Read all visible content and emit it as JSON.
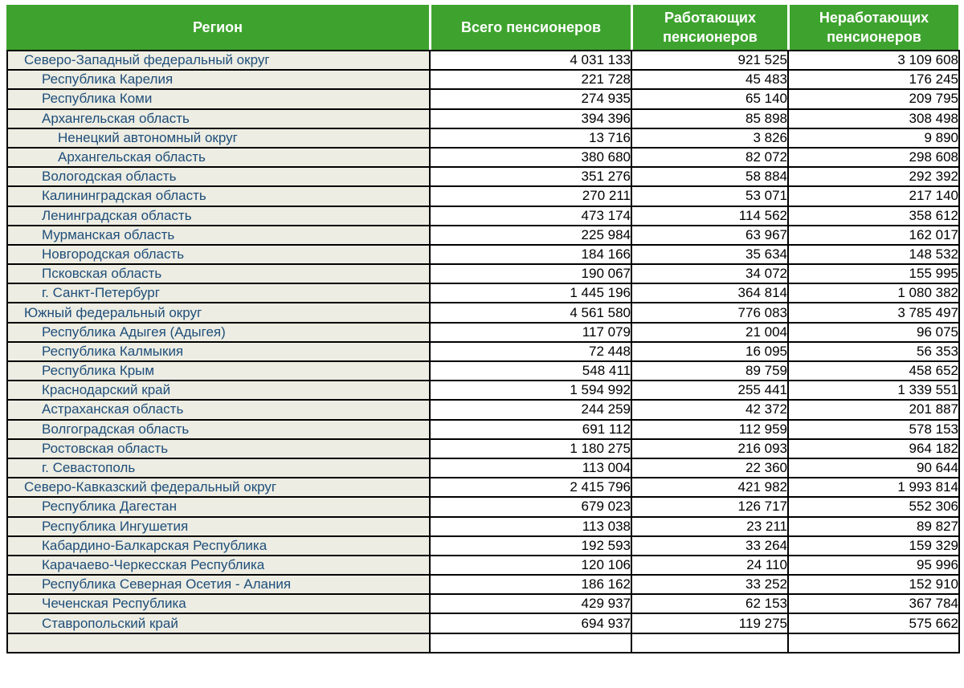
{
  "colors": {
    "header_green": "#3EA32E",
    "region_text_blue": "#1F4E79",
    "region_row_gray": "#EDEDE3",
    "grid_border": "#000000"
  },
  "header": {
    "columns": [
      {
        "label": "Регион"
      },
      {
        "label": "Всего пенсионеров"
      },
      {
        "label": "Работающих пенсионеров"
      },
      {
        "label": "Неработающих пенсионеров"
      }
    ]
  },
  "chart_data": {
    "type": "table",
    "columns": [
      "Регион",
      "Всего пенсионеров",
      "Работающих пенсионеров",
      "Неработающих пенсионеров"
    ],
    "rows": [
      {
        "region": "Северо-Западный федеральный округ",
        "level": 0,
        "total": "4 031 133",
        "working": "921 525",
        "non_working": "3 109 608"
      },
      {
        "region": "Республика Карелия",
        "level": 1,
        "total": "221 728",
        "working": "45 483",
        "non_working": "176 245"
      },
      {
        "region": "Республика Коми",
        "level": 1,
        "total": "274 935",
        "working": "65 140",
        "non_working": "209 795"
      },
      {
        "region": "Архангельская область",
        "level": 1,
        "total": "394 396",
        "working": "85 898",
        "non_working": "308 498"
      },
      {
        "region": "Ненецкий автономный округ",
        "level": 2,
        "total": "13 716",
        "working": "3 826",
        "non_working": "9 890"
      },
      {
        "region": "Архангельская область",
        "level": 2,
        "total": "380 680",
        "working": "82 072",
        "non_working": "298 608"
      },
      {
        "region": "Вологодская область",
        "level": 1,
        "total": "351 276",
        "working": "58 884",
        "non_working": "292 392"
      },
      {
        "region": "Калининградская область",
        "level": 1,
        "total": "270 211",
        "working": "53 071",
        "non_working": "217 140"
      },
      {
        "region": "Ленинградская область",
        "level": 1,
        "total": "473 174",
        "working": "114 562",
        "non_working": "358 612"
      },
      {
        "region": "Мурманская область",
        "level": 1,
        "total": "225 984",
        "working": "63 967",
        "non_working": "162 017"
      },
      {
        "region": "Новгородская область",
        "level": 1,
        "total": "184 166",
        "working": "35 634",
        "non_working": "148 532"
      },
      {
        "region": "Псковская область",
        "level": 1,
        "total": "190 067",
        "working": "34 072",
        "non_working": "155 995"
      },
      {
        "region": "г. Санкт-Петербург",
        "level": 1,
        "total": "1 445 196",
        "working": "364 814",
        "non_working": "1 080 382"
      },
      {
        "region": "Южный федеральный округ",
        "level": 0,
        "total": "4 561 580",
        "working": "776 083",
        "non_working": "3 785 497"
      },
      {
        "region": "Республика Адыгея (Адыгея)",
        "level": 1,
        "total": "117 079",
        "working": "21 004",
        "non_working": "96 075"
      },
      {
        "region": "Республика Калмыкия",
        "level": 1,
        "total": "72 448",
        "working": "16 095",
        "non_working": "56 353"
      },
      {
        "region": "Республика Крым",
        "level": 1,
        "total": "548 411",
        "working": "89 759",
        "non_working": "458 652"
      },
      {
        "region": "Краснодарский край",
        "level": 1,
        "total": "1 594 992",
        "working": "255 441",
        "non_working": "1 339 551"
      },
      {
        "region": "Астраханская область",
        "level": 1,
        "total": "244 259",
        "working": "42 372",
        "non_working": "201 887"
      },
      {
        "region": "Волгоградская область",
        "level": 1,
        "total": "691 112",
        "working": "112 959",
        "non_working": "578 153"
      },
      {
        "region": "Ростовская область",
        "level": 1,
        "total": "1 180 275",
        "working": "216 093",
        "non_working": "964 182"
      },
      {
        "region": "г. Севастополь",
        "level": 1,
        "total": "113 004",
        "working": "22 360",
        "non_working": "90 644"
      },
      {
        "region": "Северо-Кавказский федеральный округ",
        "level": 0,
        "total": "2 415 796",
        "working": "421 982",
        "non_working": "1 993 814"
      },
      {
        "region": "Республика Дагестан",
        "level": 1,
        "total": "679 023",
        "working": "126 717",
        "non_working": "552 306"
      },
      {
        "region": "Республика Ингушетия",
        "level": 1,
        "total": "113 038",
        "working": "23 211",
        "non_working": "89 827"
      },
      {
        "region": "Кабардино-Балкарская Республика",
        "level": 1,
        "total": "192 593",
        "working": "33 264",
        "non_working": "159 329"
      },
      {
        "region": "Карачаево-Черкесская Республика",
        "level": 1,
        "total": "120 106",
        "working": "24 110",
        "non_working": "95 996"
      },
      {
        "region": "Республика Северная Осетия - Алания",
        "level": 1,
        "total": "186 162",
        "working": "33 252",
        "non_working": "152 910"
      },
      {
        "region": "Чеченская Республика",
        "level": 1,
        "total": "429 937",
        "working": "62 153",
        "non_working": "367 784"
      },
      {
        "region": "Ставропольский край",
        "level": 1,
        "total": "694 937",
        "working": "119 275",
        "non_working": "575 662"
      }
    ]
  }
}
